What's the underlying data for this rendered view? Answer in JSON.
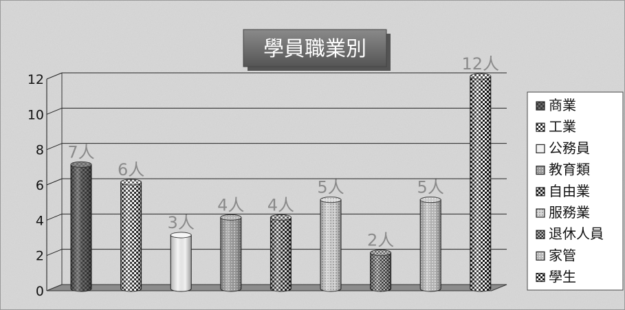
{
  "chart_data": {
    "type": "bar",
    "title": "學員職業別",
    "categories": [
      "商業",
      "工業",
      "公務員",
      "教育類",
      "自由業",
      "服務業",
      "退休人員",
      "家管",
      "學生"
    ],
    "values": [
      7,
      6,
      3,
      4,
      4,
      5,
      2,
      5,
      12
    ],
    "data_labels": [
      "7人",
      "6人",
      "3人",
      "4人",
      "4人",
      "5人",
      "2人",
      "5人",
      "12人"
    ],
    "legend": [
      "商業",
      "工業",
      "公務員",
      "教育類",
      "自由業",
      "服務業",
      "退休人員",
      "家管",
      "學生"
    ],
    "legend_position": "right",
    "yticks": [
      "0",
      "2",
      "4",
      "6",
      "8",
      "10",
      "12"
    ],
    "ylim": [
      0,
      12
    ],
    "grid": true,
    "style": "3d-cylinder",
    "colors": {
      "background": "#cfcfcf",
      "bar_dark": "#555555",
      "bar_light": "#e6e6e6",
      "label": "#8a8a8a",
      "title_bg": "#6e6e6e",
      "title_text": "#ffffff"
    }
  }
}
